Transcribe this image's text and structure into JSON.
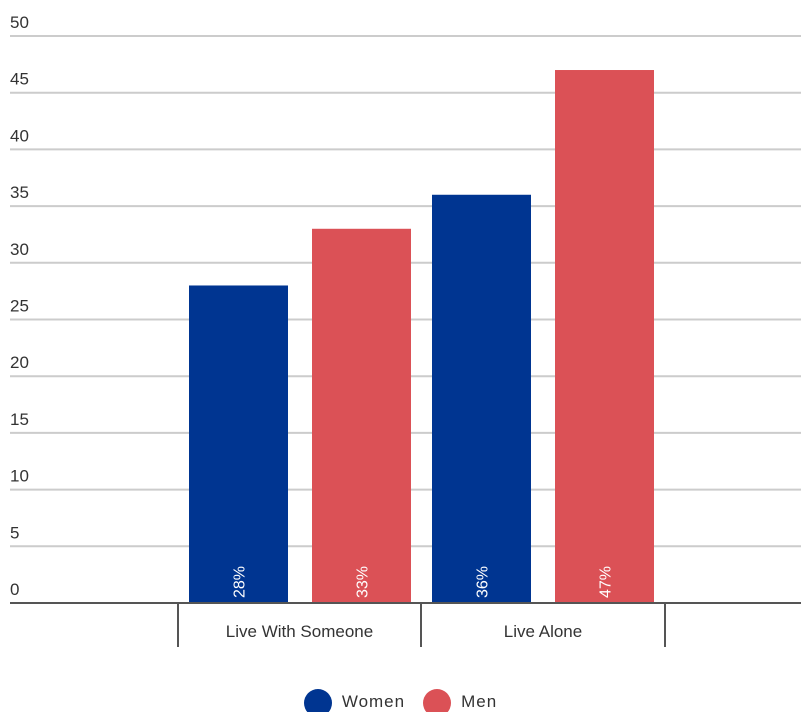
{
  "chart_data": {
    "type": "bar",
    "categories": [
      "Live With Someone",
      "Live Alone"
    ],
    "series": [
      {
        "name": "Women",
        "values": [
          28,
          36
        ],
        "labels": [
          "28%",
          "36%"
        ],
        "color": "#003591"
      },
      {
        "name": "Men",
        "values": [
          33,
          47
        ],
        "labels": [
          "33%",
          "47%"
        ],
        "color": "#DB5156"
      }
    ],
    "y_ticks": [
      "0",
      "5",
      "10",
      "15",
      "20",
      "25",
      "30",
      "35",
      "40",
      "45",
      "50"
    ],
    "ylim": [
      0,
      50
    ],
    "grid": true,
    "legend_position": "bottom-center",
    "title": "",
    "xlabel": "",
    "ylabel": ""
  }
}
